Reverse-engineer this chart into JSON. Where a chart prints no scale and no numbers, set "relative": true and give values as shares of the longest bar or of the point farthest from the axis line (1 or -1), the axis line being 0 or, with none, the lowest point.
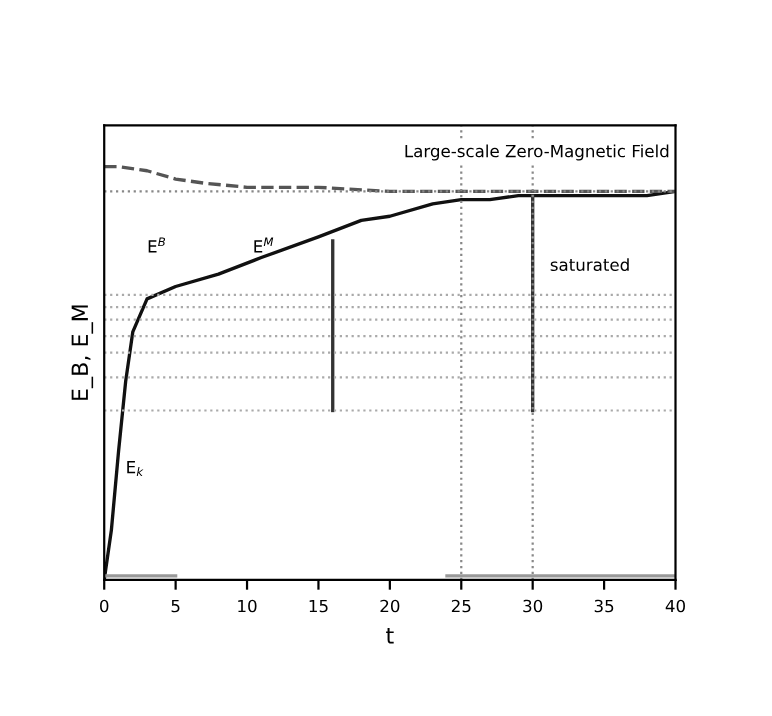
{
  "chart_data": {
    "type": "line",
    "relative": true,
    "xlabel": "t",
    "ylabel": "E_B, E_M",
    "xlim": [
      0,
      40
    ],
    "xticks": [
      0,
      5,
      10,
      15,
      20,
      25,
      30,
      35,
      40
    ],
    "grid": false,
    "legend": false,
    "marker": "none",
    "series": [
      {
        "color": "#111111",
        "line_style": "solid",
        "x": [
          0,
          0.5,
          1,
          1.5,
          2,
          3,
          5,
          8,
          11,
          15,
          18,
          20,
          23,
          25,
          27,
          29,
          31,
          35,
          38,
          40
        ],
        "values": [
          0,
          0.12,
          0.31,
          0.48,
          0.6,
          0.68,
          0.71,
          0.74,
          0.78,
          0.83,
          0.87,
          0.88,
          0.91,
          0.92,
          0.92,
          0.93,
          0.93,
          0.93,
          0.93,
          0.94
        ]
      },
      {
        "color": "#555555",
        "line_style": "dashed",
        "x": [
          0,
          1,
          3,
          5,
          7,
          10,
          15,
          20,
          25,
          30,
          35,
          40
        ],
        "values": [
          1.0,
          1.0,
          0.99,
          0.97,
          0.96,
          0.95,
          0.95,
          0.94,
          0.94,
          0.94,
          0.94,
          0.94
        ]
      },
      {
        "color": "#999999",
        "line_style": "solid",
        "x": [
          0,
          5
        ],
        "values": [
          0.01,
          0.01
        ]
      },
      {
        "color": "#999999",
        "line_style": "solid",
        "x": [
          24,
          40
        ],
        "values": [
          0.01,
          0.01
        ]
      },
      {
        "color": "#333333",
        "line_style": "solid",
        "x": [
          16,
          16
        ],
        "values": [
          0.41,
          0.82
        ]
      },
      {
        "color": "#333333",
        "line_style": "solid",
        "x": [
          30,
          30
        ],
        "values": [
          0.41,
          0.93
        ]
      }
    ],
    "ref_lines": [
      {
        "axis": "x",
        "value": 25,
        "color": "#888888",
        "line_style": "dotted"
      },
      {
        "axis": "x",
        "value": 30,
        "color": "#888888",
        "line_style": "dotted"
      },
      {
        "axis": "y",
        "value": 0.94,
        "color": "#888888",
        "line_style": "dotted"
      },
      {
        "axis": "y",
        "value": 0.69,
        "color": "#aaaaaa",
        "line_style": "dotted"
      },
      {
        "axis": "y",
        "value": 0.66,
        "color": "#aaaaaa",
        "line_style": "dotted"
      },
      {
        "axis": "y",
        "value": 0.63,
        "color": "#aaaaaa",
        "line_style": "dotted"
      },
      {
        "axis": "y",
        "value": 0.59,
        "color": "#aaaaaa",
        "line_style": "dotted"
      },
      {
        "axis": "y",
        "value": 0.55,
        "color": "#aaaaaa",
        "line_style": "dotted"
      },
      {
        "axis": "y",
        "value": 0.49,
        "color": "#aaaaaa",
        "line_style": "dotted"
      },
      {
        "axis": "y",
        "value": 0.41,
        "color": "#aaaaaa",
        "line_style": "dotted"
      }
    ],
    "annotations": [
      "Large-scale Zero-Magnetic Field",
      "E$^{B}$",
      "E$^{M}$",
      {
        "text": "E$_{k}$",
        "x": 1.5,
        "y": 0.25
      },
      "saturated"
    ]
  }
}
